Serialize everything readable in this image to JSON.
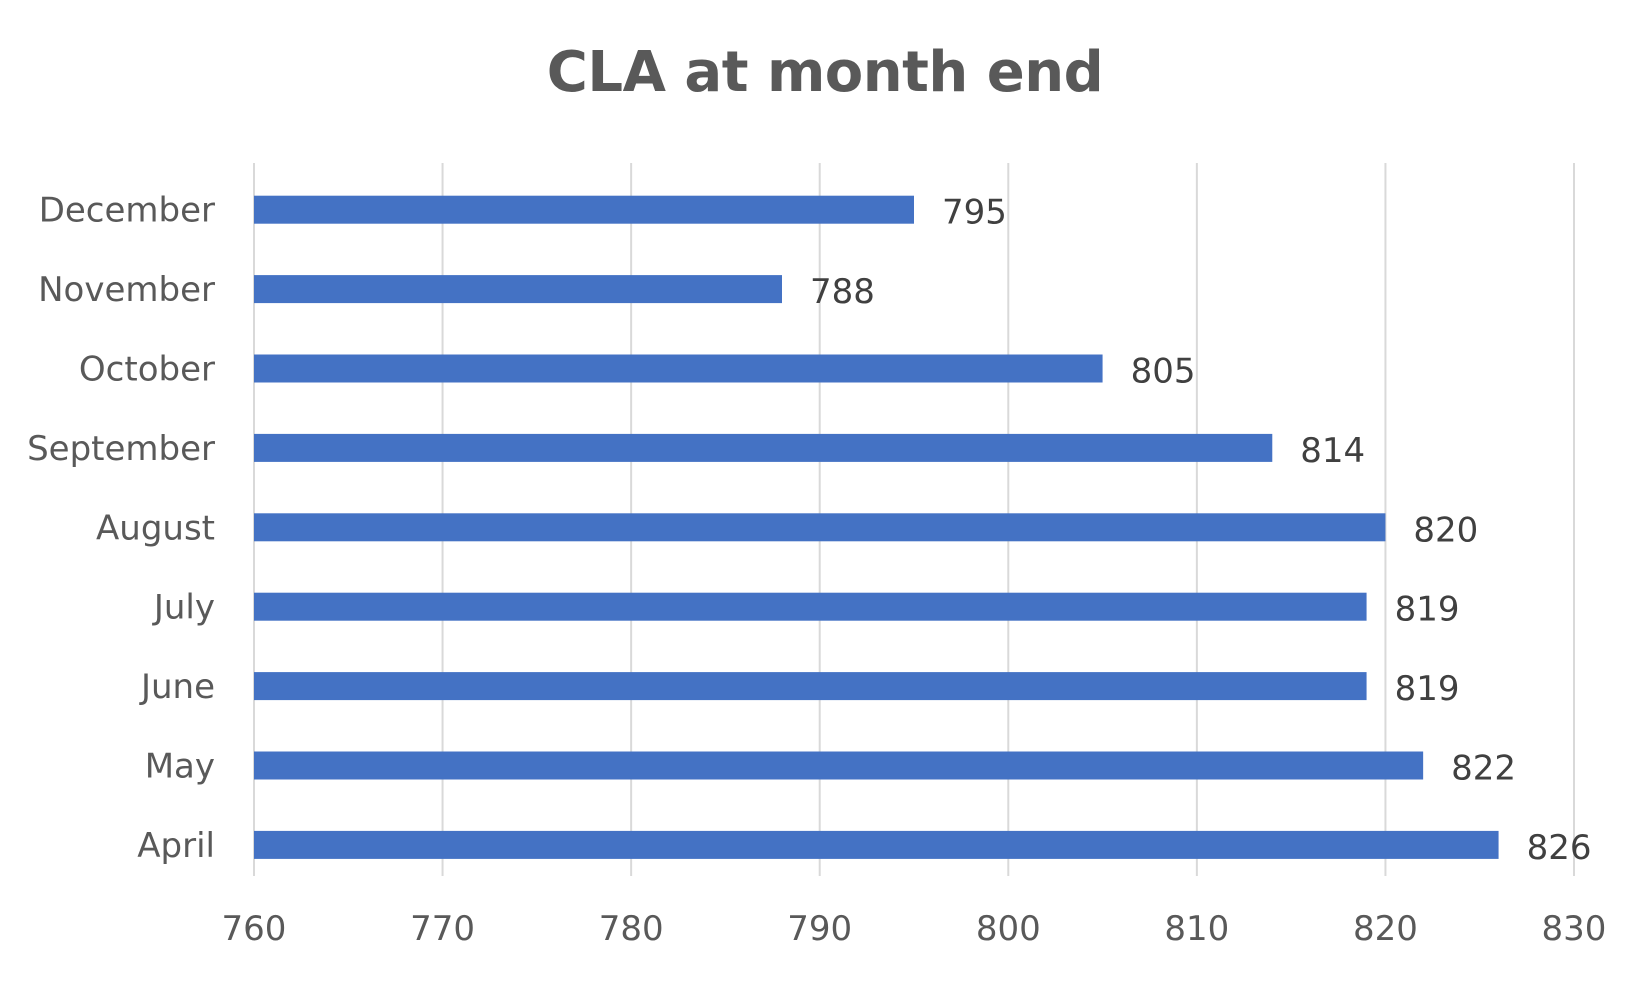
{
  "chart_data": {
    "type": "bar",
    "orientation": "horizontal",
    "title": "CLA at month end",
    "xlabel": "",
    "ylabel": "",
    "categories": [
      "April",
      "May",
      "June",
      "July",
      "August",
      "September",
      "October",
      "November",
      "December"
    ],
    "values": [
      826,
      822,
      819,
      819,
      820,
      814,
      805,
      788,
      795
    ],
    "data_labels": [
      "826",
      "822",
      "819",
      "819",
      "820",
      "814",
      "805",
      "788",
      "795"
    ],
    "xlim": [
      760,
      830
    ],
    "x_ticks": [
      760,
      770,
      780,
      790,
      800,
      810,
      820,
      830
    ],
    "x_tick_labels": [
      "760",
      "770",
      "780",
      "790",
      "800",
      "810",
      "820",
      "830"
    ],
    "grid": "vertical",
    "legend": "none",
    "colors": {
      "bar": "#4472C4",
      "grid": "#D9D9D9",
      "text": "#595959"
    }
  }
}
